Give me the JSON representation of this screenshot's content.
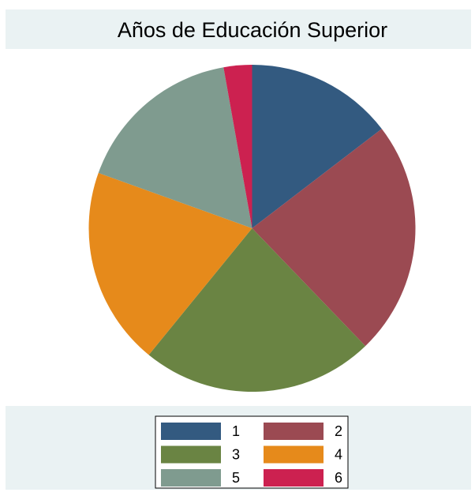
{
  "chart_data": {
    "type": "pie",
    "title": "Años de Educación Superior",
    "categories": [
      "1",
      "2",
      "3",
      "4",
      "5",
      "6"
    ],
    "values": [
      14.6,
      23.2,
      23.1,
      19.6,
      16.7,
      2.8
    ],
    "colors": [
      "#335a80",
      "#9b4a52",
      "#6a8443",
      "#e68a1b",
      "#7f9b8f",
      "#cc2150"
    ],
    "legend": "bottom"
  }
}
